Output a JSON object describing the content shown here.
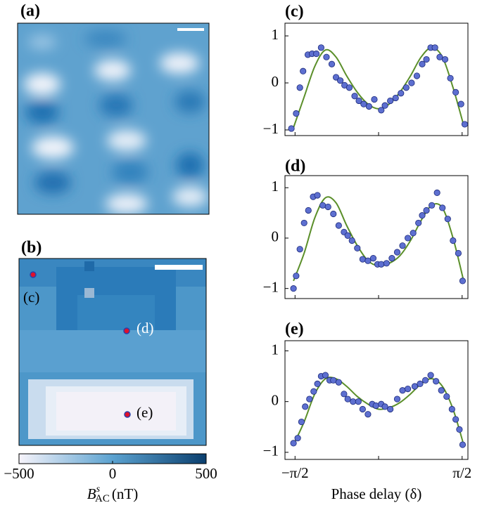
{
  "chart_data": [
    {
      "type": "image",
      "label": "(a)"
    },
    {
      "type": "image",
      "label": "(b)",
      "markers": [
        {
          "label": "(c)"
        },
        {
          "label": "(d)"
        },
        {
          "label": "(e)"
        }
      ]
    },
    {
      "type": "colorbar",
      "xlim": [
        -500,
        500
      ],
      "xticks": [
        {
          "value": -500,
          "label": "−500"
        },
        0,
        500
      ],
      "xlabel": {
        "symbol": "B",
        "sup": "s",
        "sub": "AC",
        "unit": "(nT)"
      }
    },
    {
      "type": "scatter",
      "label": "(c)",
      "xlim": [
        -1.76,
        1.68
      ],
      "ylim": [
        -1.12,
        1.27
      ],
      "xticks": [
        -1.5708,
        0,
        1.5708
      ],
      "yticks": [
        {
          "value": -1,
          "label": "−1"
        },
        0,
        1
      ],
      "series": [
        {
          "kind": "points",
          "color": "#5d6fd0",
          "x": [
            -1.64,
            -1.55,
            -1.48,
            -1.42,
            -1.33,
            -1.25,
            -1.17,
            -1.08,
            -0.98,
            -0.88,
            -0.8,
            -0.72,
            -0.64,
            -0.55,
            -0.45,
            -0.37,
            -0.28,
            -0.18,
            -0.08,
            0.05,
            0.12,
            0.22,
            0.32,
            0.42,
            0.52,
            0.62,
            0.72,
            0.82,
            0.9,
            0.98,
            1.06,
            1.15,
            1.25,
            1.35,
            1.45,
            1.55,
            1.62
          ],
          "values": [
            -0.97,
            -0.65,
            -0.1,
            0.25,
            0.6,
            0.62,
            0.62,
            0.75,
            0.55,
            0.4,
            0.12,
            0.05,
            -0.05,
            -0.1,
            -0.28,
            -0.38,
            -0.45,
            -0.5,
            -0.35,
            -0.58,
            -0.48,
            -0.38,
            -0.32,
            -0.22,
            -0.1,
            0.0,
            0.15,
            0.4,
            0.5,
            0.75,
            0.75,
            0.55,
            0.5,
            0.1,
            -0.2,
            -0.45,
            -0.88
          ]
        },
        {
          "kind": "line",
          "color": "#5b8f2a",
          "x": [
            -1.6,
            -1.4,
            -1.2,
            -1.0,
            -0.8,
            -0.6,
            -0.4,
            -0.2,
            0,
            0.2,
            0.4,
            0.6,
            0.8,
            1.0,
            1.2,
            1.4,
            1.6
          ],
          "values": [
            -0.95,
            -0.3,
            0.35,
            0.7,
            0.55,
            0.15,
            -0.2,
            -0.45,
            -0.55,
            -0.45,
            -0.2,
            0.15,
            0.55,
            0.75,
            0.55,
            -0.1,
            -0.9
          ]
        }
      ]
    },
    {
      "type": "scatter",
      "label": "(d)",
      "xlim": [
        -1.76,
        1.68
      ],
      "ylim": [
        -1.2,
        1.24
      ],
      "xticks": [
        -1.5708,
        0,
        1.5708
      ],
      "yticks": [
        {
          "value": -1,
          "label": "−1"
        },
        0,
        1
      ],
      "series": [
        {
          "kind": "points",
          "color": "#5d6fd0",
          "x": [
            -1.6,
            -1.55,
            -1.48,
            -1.4,
            -1.32,
            -1.23,
            -1.15,
            -1.05,
            -0.95,
            -0.85,
            -0.75,
            -0.65,
            -0.58,
            -0.5,
            -0.4,
            -0.3,
            -0.2,
            -0.1,
            -0.02,
            0.05,
            0.15,
            0.25,
            0.35,
            0.45,
            0.55,
            0.65,
            0.75,
            0.82,
            0.9,
            1.0,
            1.1,
            1.2,
            1.3,
            1.4,
            1.5,
            1.58
          ],
          "values": [
            -1.0,
            -0.75,
            -0.22,
            0.3,
            0.55,
            0.82,
            0.85,
            0.65,
            0.62,
            0.48,
            0.25,
            0.12,
            0.05,
            -0.05,
            -0.2,
            -0.42,
            -0.45,
            -0.4,
            -0.52,
            -0.52,
            -0.5,
            -0.4,
            -0.28,
            -0.15,
            0.0,
            0.1,
            0.3,
            0.45,
            0.55,
            0.65,
            0.9,
            0.6,
            0.38,
            -0.05,
            -0.3,
            -0.85
          ]
        },
        {
          "kind": "line",
          "color": "#5b8f2a",
          "x": [
            -1.6,
            -1.4,
            -1.2,
            -1.0,
            -0.8,
            -0.6,
            -0.4,
            -0.2,
            0,
            0.2,
            0.4,
            0.6,
            0.8,
            1.0,
            1.2,
            1.4,
            1.6
          ],
          "values": [
            -0.85,
            -0.3,
            0.4,
            0.8,
            0.7,
            0.25,
            -0.15,
            -0.45,
            -0.55,
            -0.5,
            -0.35,
            -0.05,
            0.35,
            0.65,
            0.6,
            0.0,
            -0.85
          ]
        }
      ]
    },
    {
      "type": "scatter",
      "label": "(e)",
      "xlim": [
        -1.76,
        1.68
      ],
      "ylim": [
        -1.14,
        1.2
      ],
      "xticks": [
        {
          "value": -1.5708,
          "label": "−π/2"
        },
        0,
        {
          "value": 1.5708,
          "label": "π/2"
        }
      ],
      "yticks": [
        {
          "value": -1,
          "label": "−1"
        },
        0,
        1
      ],
      "xlabel": "Phase delay (δ)",
      "series": [
        {
          "kind": "points",
          "color": "#5d6fd0",
          "x": [
            -1.6,
            -1.52,
            -1.45,
            -1.38,
            -1.3,
            -1.22,
            -1.15,
            -1.08,
            -1.0,
            -0.92,
            -0.85,
            -0.75,
            -0.65,
            -0.58,
            -0.48,
            -0.38,
            -0.3,
            -0.2,
            -0.12,
            -0.05,
            0.05,
            0.12,
            0.22,
            0.35,
            0.45,
            0.55,
            0.68,
            0.78,
            0.88,
            0.98,
            1.08,
            1.18,
            1.28,
            1.38,
            1.45,
            1.52,
            1.58
          ],
          "values": [
            -0.82,
            -0.72,
            -0.4,
            -0.1,
            0.05,
            0.2,
            0.35,
            0.5,
            0.52,
            0.42,
            0.42,
            0.38,
            0.15,
            0.05,
            0.0,
            0.0,
            -0.15,
            -0.25,
            -0.05,
            -0.08,
            -0.05,
            -0.1,
            -0.15,
            0.05,
            0.22,
            0.25,
            0.3,
            0.35,
            0.42,
            0.52,
            0.4,
            0.22,
            0.1,
            -0.15,
            -0.35,
            -0.55,
            -0.85
          ]
        },
        {
          "kind": "line",
          "color": "#5b8f2a",
          "x": [
            -1.6,
            -1.4,
            -1.2,
            -1.0,
            -0.8,
            -0.6,
            -0.4,
            -0.2,
            0,
            0.2,
            0.4,
            0.6,
            0.8,
            1.0,
            1.2,
            1.4,
            1.6
          ],
          "values": [
            -0.85,
            -0.4,
            0.15,
            0.45,
            0.45,
            0.3,
            0.1,
            -0.05,
            -0.15,
            -0.12,
            -0.02,
            0.15,
            0.35,
            0.45,
            0.3,
            -0.15,
            -0.85
          ]
        }
      ]
    }
  ]
}
